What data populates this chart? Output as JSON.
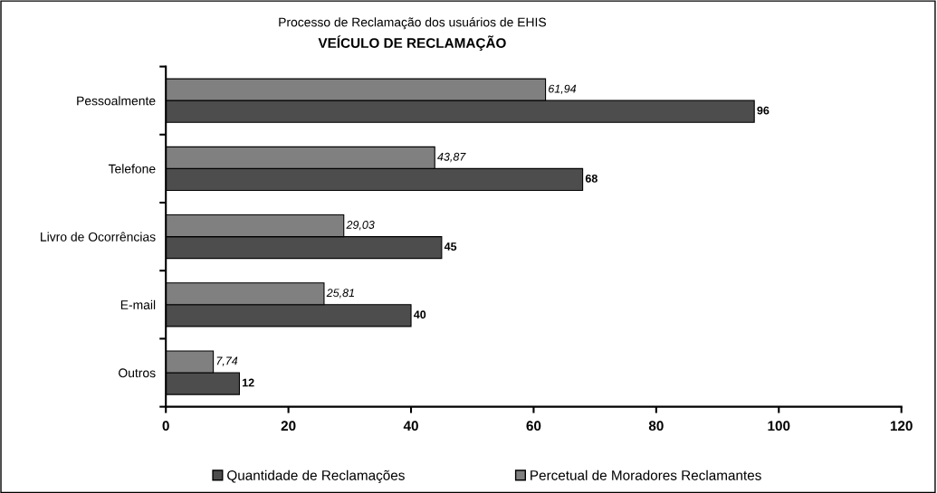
{
  "chart_data": {
    "type": "bar",
    "orientation": "horizontal",
    "title": "Processo de Reclamação dos usuários de EHIS",
    "subtitle": "VEÍCULO DE RECLAMAÇÃO",
    "categories": [
      "Pessoalmente",
      "Telefone",
      "Livro de Ocorrências",
      "E-mail",
      "Outros"
    ],
    "series": [
      {
        "name": "Quantidade de Reclamações",
        "color": "#4d4d4d",
        "values": [
          96,
          68,
          45,
          40,
          12
        ],
        "value_labels": [
          "96",
          "68",
          "45",
          "40",
          "12"
        ]
      },
      {
        "name": "Percetual de Moradores Reclamantes",
        "color": "#808080",
        "values": [
          61.94,
          43.87,
          29.03,
          25.81,
          7.74
        ],
        "value_labels": [
          "61,94",
          "43,87",
          "29,03",
          "25,81",
          "7,74"
        ]
      }
    ],
    "xlim": [
      0,
      120
    ],
    "xticks": [
      0,
      20,
      40,
      60,
      80,
      100,
      120
    ],
    "grid": false,
    "legend": "bottom"
  }
}
